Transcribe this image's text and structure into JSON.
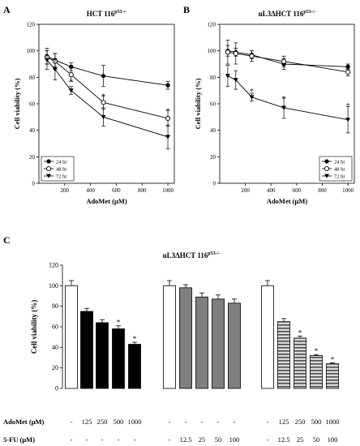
{
  "colors": {
    "ink": "#000000",
    "paper": "#ffffff",
    "gray_bar": "#7f7f7f",
    "stripe_light": "#d9d9d9",
    "stripe_dark": "#4d4d4d"
  },
  "panels": {
    "a": {
      "letter": "A"
    },
    "b": {
      "letter": "B"
    },
    "c": {
      "letter": "C"
    }
  },
  "chart_data": [
    {
      "type": "line",
      "panel": "A",
      "title": {
        "main": "HCT 116",
        "sup": "p53-/-"
      },
      "xlabel": "AdoMet (μM)",
      "ylabel": "Cell viability (%)",
      "xlim": [
        0,
        1050
      ],
      "ylim": [
        0,
        120
      ],
      "xticks": [
        200,
        400,
        600,
        800,
        1000
      ],
      "yticks": [
        0,
        20,
        40,
        60,
        80,
        100,
        120
      ],
      "x": [
        62.5,
        125,
        250,
        500,
        1000
      ],
      "legend": {
        "placement": "bottom-left"
      },
      "significance": [
        {
          "x": 250,
          "y": 77,
          "label": "*"
        },
        {
          "x": 500,
          "y": 66,
          "label": "*"
        },
        {
          "x": 1000,
          "y": 55,
          "label": "*"
        }
      ],
      "series": [
        {
          "name": "24 hr",
          "marker": "filled-circle",
          "values": [
            96,
            93,
            88,
            81,
            74
          ],
          "errors": [
            6,
            5,
            3,
            8,
            3
          ]
        },
        {
          "name": "48 hr",
          "marker": "open-circle",
          "values": [
            95,
            92,
            82,
            61,
            49
          ],
          "errors": [
            5,
            6,
            5,
            5,
            6
          ]
        },
        {
          "name": "72 hr",
          "marker": "filled-triangle",
          "values": [
            93,
            86,
            70,
            50,
            35
          ],
          "errors": [
            7,
            8,
            3,
            7,
            9
          ]
        }
      ]
    },
    {
      "type": "line",
      "panel": "B",
      "title": {
        "main": "uL3ΔHCT 116",
        "sup": "p53-/-"
      },
      "xlabel": "AdoMet (μM)",
      "ylabel": "Cell viability (%)",
      "xlim": [
        0,
        1050
      ],
      "ylim": [
        0,
        120
      ],
      "xticks": [
        200,
        400,
        600,
        800,
        1000
      ],
      "yticks": [
        0,
        20,
        40,
        60,
        80,
        100,
        120
      ],
      "x": [
        62.5,
        125,
        250,
        500,
        1000
      ],
      "legend": {
        "placement": "bottom-right"
      },
      "significance": [
        {
          "x": 250,
          "y": 70,
          "label": "*"
        },
        {
          "x": 500,
          "y": 64,
          "label": "*"
        },
        {
          "x": 1000,
          "y": 59,
          "label": "*"
        }
      ],
      "series": [
        {
          "name": "24 hr",
          "marker": "filled-circle",
          "values": [
            100,
            99,
            97,
            90,
            88
          ],
          "errors": [
            4,
            3,
            3,
            4,
            2
          ]
        },
        {
          "name": "48 hr",
          "marker": "open-circle",
          "values": [
            99,
            98,
            96,
            92,
            84
          ],
          "errors": [
            9,
            8,
            4,
            4,
            3
          ]
        },
        {
          "name": "72 hr",
          "marker": "filled-triangle",
          "values": [
            81,
            78,
            65,
            57,
            48
          ],
          "errors": [
            8,
            7,
            3,
            8,
            10
          ]
        }
      ]
    },
    {
      "type": "bar",
      "panel": "C",
      "title": {
        "main": "uL3ΔHCT 116",
        "sup": "p53-/-"
      },
      "ylabel": "Cell viability (%)",
      "ylim": [
        0,
        120
      ],
      "yticks": [
        0,
        20,
        40,
        60,
        80,
        100,
        120
      ],
      "row_labels": [
        "AdoMet (μM)",
        "5-FU (μM)"
      ],
      "bars": [
        {
          "style": "white",
          "value": 100,
          "error": 5,
          "star": false,
          "adomet": "-",
          "fu": "-"
        },
        {
          "style": "black",
          "value": 75,
          "error": 3,
          "star": false,
          "adomet": "125",
          "fu": "-"
        },
        {
          "style": "black",
          "value": 64,
          "error": 3,
          "star": false,
          "adomet": "250",
          "fu": "-"
        },
        {
          "style": "black",
          "value": 58,
          "error": 3,
          "star": true,
          "adomet": "500",
          "fu": "-"
        },
        {
          "style": "black",
          "value": 43,
          "error": 2,
          "star": true,
          "adomet": "1000",
          "fu": "-"
        },
        {
          "style": "white",
          "value": 100,
          "error": 5,
          "star": false,
          "adomet": "-",
          "fu": "-"
        },
        {
          "style": "gray",
          "value": 98,
          "error": 3,
          "star": false,
          "adomet": "-",
          "fu": "12.5"
        },
        {
          "style": "gray",
          "value": 89,
          "error": 4,
          "star": false,
          "adomet": "-",
          "fu": "25"
        },
        {
          "style": "gray",
          "value": 87,
          "error": 4,
          "star": false,
          "adomet": "-",
          "fu": "50"
        },
        {
          "style": "gray",
          "value": 83,
          "error": 4,
          "star": false,
          "adomet": "-",
          "fu": "100"
        },
        {
          "style": "white",
          "value": 100,
          "error": 5,
          "star": false,
          "adomet": "-",
          "fu": "-"
        },
        {
          "style": "striped",
          "value": 65,
          "error": 3,
          "star": false,
          "adomet": "125",
          "fu": "12.5"
        },
        {
          "style": "striped",
          "value": 49,
          "error": 2,
          "star": true,
          "adomet": "250",
          "fu": "25"
        },
        {
          "style": "striped",
          "value": 32,
          "error": 1,
          "star": true,
          "adomet": "500",
          "fu": "50"
        },
        {
          "style": "striped",
          "value": 24,
          "error": 1,
          "star": true,
          "adomet": "1000",
          "fu": "100"
        }
      ],
      "star_label": "*"
    }
  ]
}
